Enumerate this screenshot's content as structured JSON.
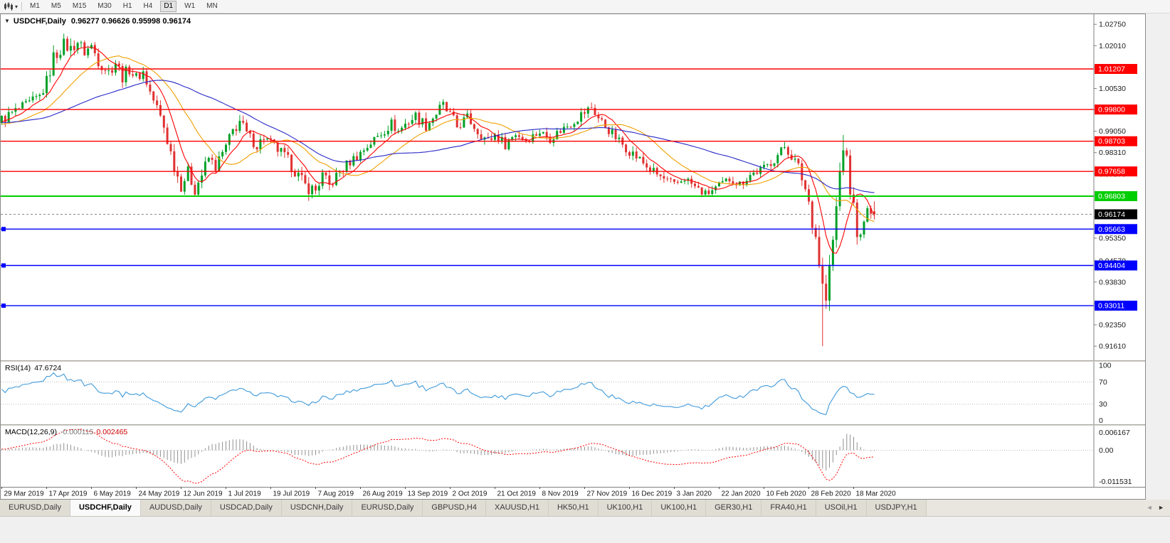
{
  "icons": {
    "caret": "▾",
    "oct": "▼",
    "left": "◄",
    "right": "►"
  },
  "toolbar": {
    "timeframes": [
      "M1",
      "M5",
      "M15",
      "M30",
      "H1",
      "H4",
      "D1",
      "W1",
      "MN"
    ],
    "active_timeframe": "D1"
  },
  "chart_data": {
    "type": "candlestick",
    "symbol": "USDCHF,Daily",
    "ohlc": "0.96277 0.96626 0.95998 0.96174",
    "last_ohlc": {
      "o": 0.96277,
      "h": 0.96626,
      "l": 0.95998,
      "c": 0.96174
    },
    "price_axis_ticks": [
      "1.02750",
      "1.02010",
      "1.01270",
      "1.00530",
      "0.99790",
      "0.99050",
      "0.98310",
      "0.97570",
      "0.96830",
      "0.96090",
      "0.95350",
      "0.94570",
      "0.93830",
      "0.93090",
      "0.92350",
      "0.91610"
    ],
    "hlines": [
      {
        "label": "1.01207",
        "value": 1.01207,
        "color": "#FF0000"
      },
      {
        "label": "0.99800",
        "value": 0.998,
        "color": "#FF0000"
      },
      {
        "label": "0.98703",
        "value": 0.98703,
        "color": "#FF0000"
      },
      {
        "label": "0.97658",
        "value": 0.97658,
        "color": "#FF0000"
      },
      {
        "label": "0.96803",
        "value": 0.96803,
        "color": "#00CE00"
      },
      {
        "label": "0.95663",
        "value": 0.95663,
        "color": "#0000FF"
      },
      {
        "label": "0.94404",
        "value": 0.94404,
        "color": "#0000FF"
      },
      {
        "label": "0.93011",
        "value": 0.93011,
        "color": "#0000FF"
      }
    ],
    "current_price": {
      "label": "0.96174",
      "value": 0.96174
    },
    "date_labels": [
      "29 Mar 2019",
      "17 Apr 2019",
      "6 May 2019",
      "24 May 2019",
      "12 Jun 2019",
      "1 Jul 2019",
      "19 Jul 2019",
      "7 Aug 2019",
      "26 Aug 2019",
      "13 Sep 2019",
      "2 Oct 2019",
      "21 Oct 2019",
      "8 Nov 2019",
      "27 Nov 2019",
      "16 Dec 2019",
      "3 Jan 2020",
      "22 Jan 2020",
      "10 Feb 2020",
      "28 Feb 2020",
      "18 Mar 2020"
    ],
    "candles": {
      "start": -60,
      "count": 254,
      "anchors": [
        [
          -60,
          0.991,
          0.004
        ],
        [
          -30,
          0.995,
          0.004
        ],
        [
          -10,
          0.992,
          0.004
        ],
        [
          0,
          0.9945,
          0.0045
        ],
        [
          4,
          0.9975,
          0.004
        ],
        [
          8,
          1.0,
          0.004
        ],
        [
          11,
          1.0025,
          0.0045
        ],
        [
          13,
          1.0075,
          0.0055
        ],
        [
          15,
          1.016,
          0.006
        ],
        [
          18,
          1.0205,
          0.005
        ],
        [
          20,
          1.019,
          0.005
        ],
        [
          22,
          1.0215,
          0.0045
        ],
        [
          24,
          1.018,
          0.005
        ],
        [
          26,
          1.02,
          0.0045
        ],
        [
          28,
          1.015,
          0.005
        ],
        [
          31,
          1.011,
          0.005
        ],
        [
          33,
          1.0145,
          0.0045
        ],
        [
          35,
          1.0095,
          0.005
        ],
        [
          37,
          1.012,
          0.0045
        ],
        [
          39,
          1.009,
          0.0045
        ],
        [
          41,
          1.011,
          0.004
        ],
        [
          43,
          1.004,
          0.005
        ],
        [
          45,
          0.9985,
          0.005
        ],
        [
          47,
          0.992,
          0.0055
        ],
        [
          49,
          0.983,
          0.006
        ],
        [
          51,
          0.975,
          0.006
        ],
        [
          52,
          0.972,
          0.0055
        ],
        [
          54,
          0.9762,
          0.005
        ],
        [
          56,
          0.9705,
          0.005
        ],
        [
          58,
          0.9755,
          0.005
        ],
        [
          60,
          0.9812,
          0.0045
        ],
        [
          62,
          0.9782,
          0.0045
        ],
        [
          65,
          0.985,
          0.0045
        ],
        [
          67,
          0.9905,
          0.005
        ],
        [
          69,
          0.994,
          0.005
        ],
        [
          71,
          0.9895,
          0.0045
        ],
        [
          74,
          0.9855,
          0.004
        ],
        [
          76,
          0.9885,
          0.004
        ],
        [
          78,
          0.9862,
          0.004
        ],
        [
          81,
          0.983,
          0.0045
        ],
        [
          84,
          0.9788,
          0.005
        ],
        [
          86,
          0.975,
          0.005
        ],
        [
          88,
          0.9715,
          0.0055
        ],
        [
          91,
          0.97,
          0.005
        ],
        [
          93,
          0.9752,
          0.0045
        ],
        [
          95,
          0.9715,
          0.0045
        ],
        [
          98,
          0.9765,
          0.0045
        ],
        [
          101,
          0.98,
          0.004
        ],
        [
          104,
          0.983,
          0.004
        ],
        [
          107,
          0.9865,
          0.004
        ],
        [
          110,
          0.9898,
          0.004
        ],
        [
          113,
          0.9932,
          0.004
        ],
        [
          115,
          0.9905,
          0.004
        ],
        [
          117,
          0.993,
          0.004
        ],
        [
          120,
          0.9958,
          0.0045
        ],
        [
          123,
          0.9925,
          0.0045
        ],
        [
          126,
          0.9968,
          0.005
        ],
        [
          128,
          0.9992,
          0.005
        ],
        [
          130,
          0.9958,
          0.005
        ],
        [
          132,
          0.992,
          0.0045
        ],
        [
          135,
          0.9952,
          0.004
        ],
        [
          138,
          0.9905,
          0.004
        ],
        [
          141,
          0.987,
          0.004
        ],
        [
          143,
          0.9893,
          0.004
        ],
        [
          146,
          0.986,
          0.004
        ],
        [
          149,
          0.9898,
          0.004
        ],
        [
          152,
          0.9875,
          0.0035
        ],
        [
          156,
          0.9903,
          0.0035
        ],
        [
          159,
          0.988,
          0.0035
        ],
        [
          162,
          0.9908,
          0.0035
        ],
        [
          165,
          0.9932,
          0.0035
        ],
        [
          168,
          0.9962,
          0.004
        ],
        [
          171,
          0.9988,
          0.004
        ],
        [
          173,
          0.995,
          0.004
        ],
        [
          176,
          0.991,
          0.004
        ],
        [
          179,
          0.987,
          0.004
        ],
        [
          182,
          0.9838,
          0.004
        ],
        [
          185,
          0.9806,
          0.004
        ],
        [
          188,
          0.9772,
          0.004
        ],
        [
          191,
          0.9746,
          0.004
        ],
        [
          195,
          0.9716,
          0.004
        ],
        [
          198,
          0.9744,
          0.0035
        ],
        [
          201,
          0.9712,
          0.0035
        ],
        [
          204,
          0.9686,
          0.0035
        ],
        [
          208,
          0.9714,
          0.0035
        ],
        [
          211,
          0.974,
          0.0035
        ],
        [
          214,
          0.9722,
          0.0035
        ],
        [
          217,
          0.9754,
          0.0035
        ],
        [
          221,
          0.9776,
          0.0035
        ],
        [
          224,
          0.9808,
          0.0035
        ],
        [
          227,
          0.9852,
          0.0035
        ],
        [
          229,
          0.982,
          0.004
        ],
        [
          231,
          0.978,
          0.0045
        ],
        [
          233,
          0.9706,
          0.0055
        ],
        [
          234,
          0.9662,
          0.006
        ],
        [
          235,
          0.96,
          0.007
        ],
        [
          236,
          0.9544,
          0.008
        ],
        [
          237,
          0.9452,
          0.009
        ],
        [
          238,
          0.9366,
          0.01
        ],
        [
          239,
          0.932,
          0.009
        ],
        [
          240,
          0.9424,
          0.008
        ],
        [
          241,
          0.9524,
          0.008
        ],
        [
          242,
          0.9638,
          0.008
        ],
        [
          243,
          0.9762,
          0.008
        ],
        [
          244,
          0.9858,
          0.007
        ],
        [
          245,
          0.9798,
          0.006
        ],
        [
          246,
          0.97,
          0.006
        ],
        [
          247,
          0.9642,
          0.006
        ],
        [
          248,
          0.9562,
          0.006
        ],
        [
          249,
          0.9532,
          0.005
        ],
        [
          250,
          0.9582,
          0.005
        ],
        [
          251,
          0.9642,
          0.005
        ],
        [
          252,
          0.96,
          0.0045
        ],
        [
          253,
          0.96174,
          0.004
        ]
      ],
      "wick_overrides": [
        {
          "i": 20,
          "high": 1.0226
        },
        {
          "i": 128,
          "high": 1.0016
        },
        {
          "i": 171,
          "high": 1.0004
        },
        {
          "i": 227,
          "high": 0.9868
        },
        {
          "i": 238,
          "low": 0.9161
        },
        {
          "i": 244,
          "high": 0.9892
        }
      ]
    },
    "moving_averages": [
      {
        "period": 8,
        "color": "#FF0000"
      },
      {
        "period": 20,
        "color": "#F0A000"
      },
      {
        "period": 50,
        "color": "#2828C8"
      }
    ],
    "colors": {
      "up": "#00A126",
      "down": "#E03131",
      "support_green": "#00CE00",
      "line_blue": "#0000FF"
    }
  },
  "rsi": {
    "name": "RSI(14)",
    "value": "47.6724",
    "period": 14,
    "levels": [
      70,
      30
    ],
    "axis_labels": [
      "100",
      "70",
      "30",
      "0"
    ],
    "color": "#3E9ADB"
  },
  "macd": {
    "name": "MACD(12,26,9)",
    "value_main": "-0.000115",
    "value_signal": "0.002465",
    "fast": 12,
    "slow": 26,
    "signal": 9,
    "axis_top": "0.006167",
    "axis_zero": "0.00",
    "axis_bottom": "-0.011531",
    "hist_color": "#909090",
    "line_color": "#FF0000"
  },
  "tabs": {
    "items": [
      "EURUSD,Daily",
      "USDCHF,Daily",
      "AUDUSD,Daily",
      "USDCAD,Daily",
      "USDCNH,Daily",
      "EURUSD,Daily",
      "GBPUSD,H4",
      "XAUUSD,H1",
      "HK50,H1",
      "UK100,H1",
      "UK100,H1",
      "GER30,H1",
      "FRA40,H1",
      "USOil,H1",
      "USDJPY,H1"
    ],
    "active_index": 1
  }
}
